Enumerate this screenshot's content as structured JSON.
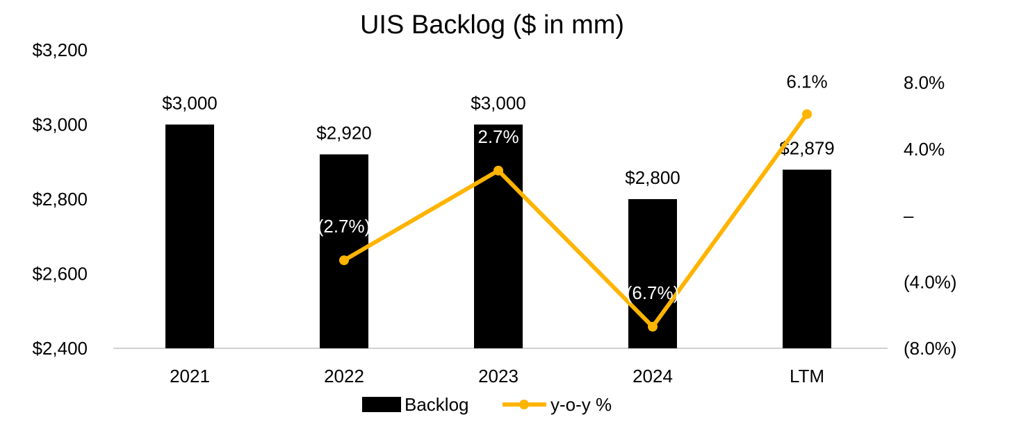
{
  "chart_data": {
    "type": "bar",
    "title": "UIS Backlog ($ in mm)",
    "categories": [
      "2021",
      "2022",
      "2023",
      "2024",
      "LTM"
    ],
    "series": [
      {
        "name": "Backlog",
        "type": "bar",
        "axis": "left",
        "values": [
          3000,
          2920,
          3000,
          2800,
          2879
        ],
        "labels": [
          "$3,000",
          "$2,920",
          "$3,000",
          "$2,800",
          "$2,879"
        ],
        "color": "#000000"
      },
      {
        "name": "y-o-y %",
        "type": "line",
        "axis": "right",
        "values": [
          null,
          -2.7,
          2.7,
          -6.7,
          6.1
        ],
        "labels": [
          "",
          "(2.7%)",
          "2.7%",
          "(6.7%)",
          "6.1%"
        ],
        "color": "#FFB400"
      }
    ],
    "y_left": {
      "ylim": [
        2400,
        3200
      ],
      "ticks": [
        2400,
        2600,
        2800,
        3000,
        3200
      ],
      "tick_labels": [
        "$2,400",
        "$2,600",
        "$2,800",
        "$3,000",
        "$3,200"
      ]
    },
    "y_right": {
      "ylim": [
        -8,
        8
      ],
      "ticks": [
        -8,
        -4,
        0,
        4,
        8
      ],
      "tick_labels": [
        "(8.0%)",
        "(4.0%)",
        "–",
        "4.0%",
        "8.0%"
      ]
    },
    "grid": false,
    "legend": "bottom"
  }
}
